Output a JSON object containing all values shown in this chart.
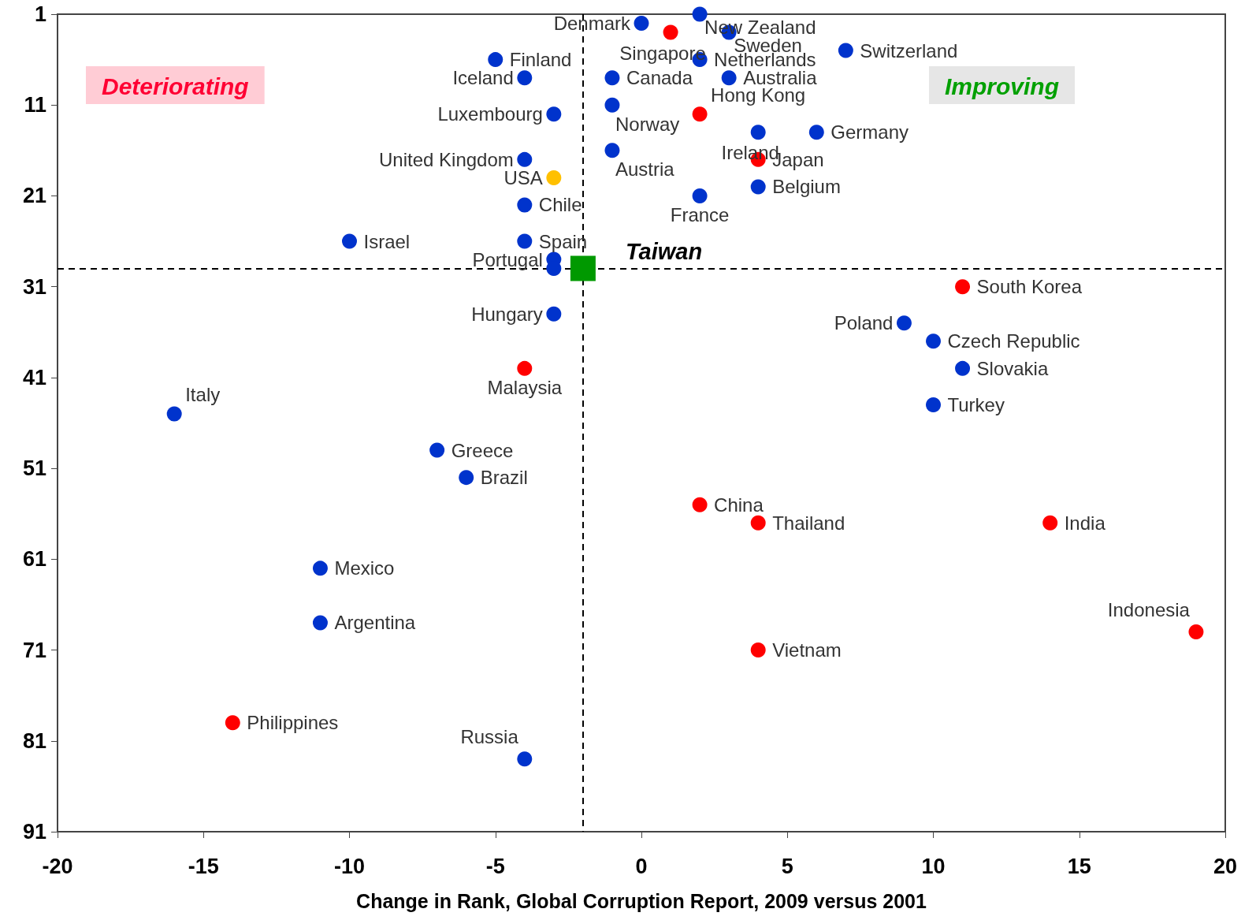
{
  "chart_data": {
    "type": "scatter",
    "xlabel": "Change in Rank, Global Corruption Report, 2009 versus 2001",
    "xlim": [
      -20,
      20
    ],
    "xticks": [
      -20,
      -15,
      -10,
      -5,
      0,
      5,
      10,
      15,
      20
    ],
    "ylim": [
      91,
      1
    ],
    "yticks": [
      1,
      11,
      21,
      31,
      41,
      51,
      61,
      71,
      81,
      91
    ],
    "grid": false,
    "marker": "circle",
    "series": [
      {
        "color": "#0033cc",
        "x": [
          0,
          2,
          3,
          2,
          7,
          -5,
          -4,
          -1,
          3,
          -1,
          -3,
          6,
          4,
          -1,
          -4,
          4,
          2,
          -4,
          -10,
          -4,
          -3,
          -3,
          -3,
          9,
          10,
          11,
          -16,
          10,
          -7,
          -6,
          -11,
          -11,
          -4
        ],
        "values": [
          2,
          1,
          3,
          6,
          5,
          6,
          8,
          8,
          8,
          11,
          12,
          14,
          14,
          16,
          17,
          20,
          21,
          22,
          26,
          26,
          28,
          29,
          34,
          35,
          37,
          40,
          45,
          44,
          49,
          52,
          62,
          68,
          83
        ]
      },
      {
        "color": "#ff0000",
        "x": [
          1,
          2,
          4,
          11,
          -4,
          2,
          4,
          14,
          19,
          4,
          -14
        ],
        "values": [
          3,
          12,
          17,
          31,
          40,
          55,
          57,
          57,
          69,
          71,
          79
        ]
      },
      {
        "color": "#ffc000",
        "x": [
          -3
        ],
        "values": [
          19
        ]
      },
      {
        "color": "#009900",
        "marker": "square",
        "x": [
          -2
        ],
        "values": [
          29
        ]
      }
    ],
    "ref_lines": [
      {
        "axis": "x",
        "value": -2,
        "line_style": "dashed",
        "color": "#000000"
      },
      {
        "axis": "y",
        "value": 29,
        "line_style": "dashed",
        "color": "#000000"
      }
    ],
    "annotations": [
      "Deteriorating",
      "Improving",
      {
        "text": "Taiwan",
        "x": -2,
        "y": 29
      },
      {
        "text": "Denmark",
        "x": 0,
        "y": 2
      },
      {
        "text": "New Zealand",
        "x": 2,
        "y": 1
      },
      {
        "text": "Sweden",
        "x": 3,
        "y": 3
      },
      {
        "text": "Singapore",
        "x": 1,
        "y": 3
      },
      {
        "text": "Netherlands",
        "x": 2,
        "y": 6
      },
      {
        "text": "Switzerland",
        "x": 7,
        "y": 5
      },
      {
        "text": "Finland",
        "x": -5,
        "y": 6
      },
      {
        "text": "Iceland",
        "x": -4,
        "y": 8
      },
      {
        "text": "Canada",
        "x": -1,
        "y": 8
      },
      {
        "text": "Australia",
        "x": 3,
        "y": 8
      },
      {
        "text": "Norway",
        "x": -1,
        "y": 11
      },
      {
        "text": "Hong Kong",
        "x": 2,
        "y": 12
      },
      {
        "text": "Luxembourg",
        "x": -3,
        "y": 12
      },
      {
        "text": "Germany",
        "x": 6,
        "y": 14
      },
      {
        "text": "Ireland",
        "x": 4,
        "y": 14
      },
      {
        "text": "Austria",
        "x": -1,
        "y": 16
      },
      {
        "text": "United Kingdom",
        "x": -4,
        "y": 17
      },
      {
        "text": "Japan",
        "x": 4,
        "y": 17
      },
      {
        "text": "USA",
        "x": -3,
        "y": 19
      },
      {
        "text": "Belgium",
        "x": 4,
        "y": 20
      },
      {
        "text": "France",
        "x": 2,
        "y": 21
      },
      {
        "text": "Chile",
        "x": -4,
        "y": 22
      },
      {
        "text": "Israel",
        "x": -10,
        "y": 26
      },
      {
        "text": "Spain",
        "x": -4,
        "y": 26
      },
      {
        "text": "Portugal",
        "x": -3,
        "y": 28
      },
      {
        "text": "Hungary",
        "x": -3,
        "y": 34
      },
      {
        "text": "South Korea",
        "x": 11,
        "y": 31
      },
      {
        "text": "Poland",
        "x": 9,
        "y": 35
      },
      {
        "text": "Czech Republic",
        "x": 10,
        "y": 37
      },
      {
        "text": "Slovakia",
        "x": 11,
        "y": 40
      },
      {
        "text": "Malaysia",
        "x": -4,
        "y": 40
      },
      {
        "text": "Italy",
        "x": -16,
        "y": 45
      },
      {
        "text": "Turkey",
        "x": 10,
        "y": 44
      },
      {
        "text": "Greece",
        "x": -7,
        "y": 49
      },
      {
        "text": "Brazil",
        "x": -6,
        "y": 52
      },
      {
        "text": "China",
        "x": 2,
        "y": 55
      },
      {
        "text": "Thailand",
        "x": 4,
        "y": 57
      },
      {
        "text": "India",
        "x": 14,
        "y": 57
      },
      {
        "text": "Mexico",
        "x": -11,
        "y": 62
      },
      {
        "text": "Argentina",
        "x": -11,
        "y": 68
      },
      {
        "text": "Indonesia",
        "x": 19,
        "y": 69
      },
      {
        "text": "Vietnam",
        "x": 4,
        "y": 71
      },
      {
        "text": "Philippines",
        "x": -14,
        "y": 79
      },
      {
        "text": "Russia",
        "x": -4,
        "y": 83
      }
    ]
  }
}
